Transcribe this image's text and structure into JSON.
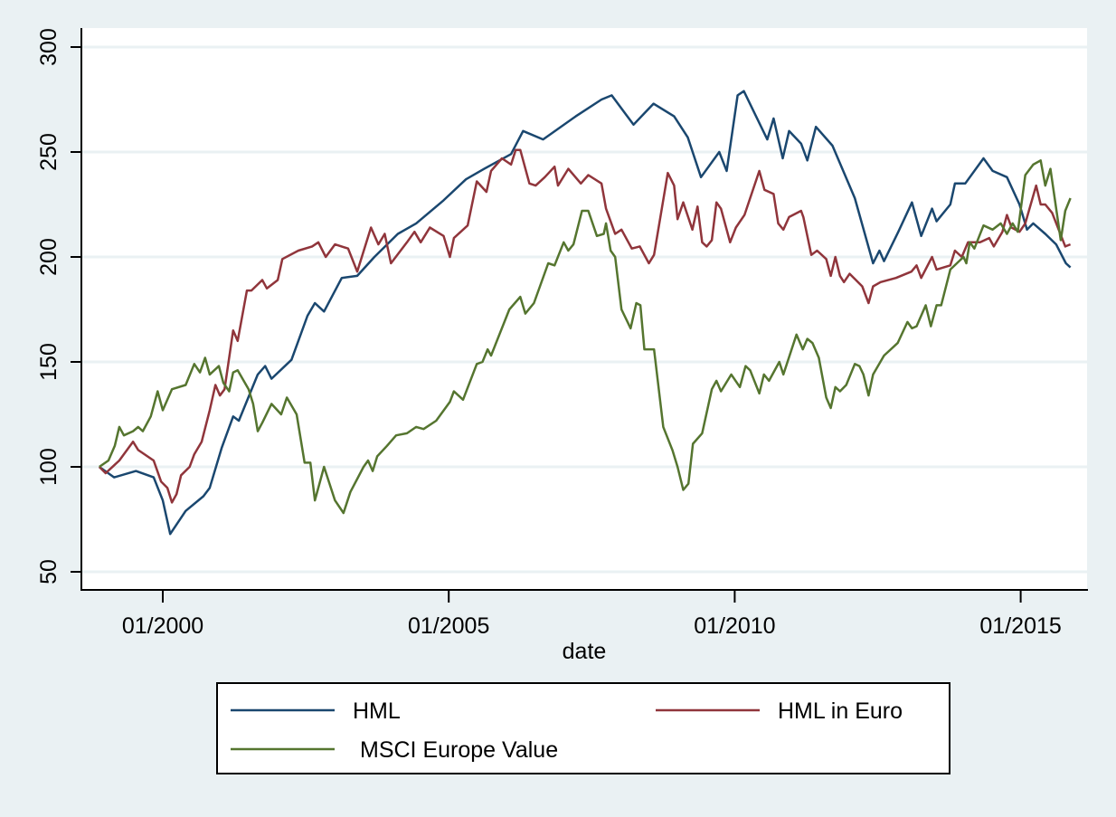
{
  "chart_data": {
    "type": "line",
    "title": "",
    "xlabel": "date",
    "ylabel": "",
    "ylim": [
      50,
      300
    ],
    "xlim": [
      1998.75,
      2016.1
    ],
    "grid": true,
    "legend_position": "bottom",
    "yticks": [
      50,
      100,
      150,
      200,
      250,
      300
    ],
    "xticks": [
      {
        "value": 2000,
        "label": "01/2000"
      },
      {
        "value": 2005,
        "label": "01/2005"
      },
      {
        "value": 2010,
        "label": "01/2010"
      },
      {
        "value": 2015,
        "label": "01/2015"
      }
    ],
    "series": [
      {
        "name": "HML",
        "color": "#1A476F",
        "x": [
          1998.89,
          1999.15,
          1999.53,
          1999.84,
          2000.0,
          2000.13,
          2000.4,
          2000.71,
          2000.82,
          2001.03,
          2001.23,
          2001.33,
          2001.66,
          2001.79,
          2001.9,
          2002.25,
          2002.53,
          2002.66,
          2002.82,
          2003.13,
          2003.4,
          2003.7,
          2004.11,
          2004.43,
          2004.91,
          2005.3,
          2005.62,
          2006.09,
          2006.3,
          2006.65,
          2007.22,
          2007.67,
          2007.85,
          2008.23,
          2008.58,
          2008.94,
          2009.18,
          2009.41,
          2009.73,
          2009.86,
          2010.05,
          2010.16,
          2010.57,
          2010.68,
          2010.84,
          2010.95,
          2011.16,
          2011.27,
          2011.42,
          2011.71,
          2012.1,
          2012.42,
          2012.53,
          2012.61,
          2012.86,
          2013.1,
          2013.26,
          2013.45,
          2013.53,
          2013.77,
          2013.85,
          2014.03,
          2014.35,
          2014.51,
          2014.76,
          2014.98,
          2015.11,
          2015.22,
          2015.43,
          2015.62,
          2015.79,
          2015.87
        ],
        "y": [
          100,
          95,
          98,
          95,
          84,
          68,
          79,
          86,
          90,
          109,
          124,
          122,
          144,
          148,
          142,
          151,
          172,
          178,
          174,
          190,
          191,
          200,
          211,
          216,
          227,
          237,
          242,
          249,
          260,
          256,
          267,
          275,
          277,
          263,
          273,
          267,
          257,
          238,
          250,
          241,
          277,
          279,
          256,
          266,
          247,
          260,
          254,
          246,
          262,
          253,
          228,
          197,
          203,
          198,
          212,
          226,
          210,
          223,
          217,
          225,
          235,
          235,
          247,
          241,
          238,
          225,
          213,
          216,
          211,
          206,
          197,
          195
        ]
      },
      {
        "name": "HML in Euro",
        "color": "#90353B",
        "x": [
          1998.89,
          1999.0,
          1999.24,
          1999.48,
          1999.57,
          1999.84,
          1999.97,
          2000.08,
          2000.16,
          2000.24,
          2000.32,
          2000.47,
          2000.55,
          2000.68,
          2000.82,
          2000.92,
          2001.0,
          2001.08,
          2001.23,
          2001.31,
          2001.47,
          2001.55,
          2001.74,
          2001.82,
          2002.01,
          2002.09,
          2002.37,
          2002.61,
          2002.72,
          2002.85,
          2003.01,
          2003.24,
          2003.4,
          2003.64,
          2003.77,
          2003.88,
          2003.99,
          2004.27,
          2004.4,
          2004.51,
          2004.67,
          2004.91,
          2005.02,
          2005.09,
          2005.33,
          2005.49,
          2005.66,
          2005.74,
          2005.93,
          2006.09,
          2006.17,
          2006.25,
          2006.41,
          2006.52,
          2006.68,
          2006.85,
          2006.91,
          2007.09,
          2007.31,
          2007.44,
          2007.67,
          2007.75,
          2007.91,
          2008.02,
          2008.2,
          2008.34,
          2008.5,
          2008.59,
          2008.83,
          2008.94,
          2009.0,
          2009.1,
          2009.26,
          2009.35,
          2009.43,
          2009.51,
          2009.6,
          2009.68,
          2009.76,
          2009.92,
          2010.02,
          2010.17,
          2010.43,
          2010.52,
          2010.68,
          2010.76,
          2010.85,
          2010.95,
          2011.16,
          2011.2,
          2011.34,
          2011.44,
          2011.6,
          2011.68,
          2011.76,
          2011.84,
          2011.91,
          2012.01,
          2012.23,
          2012.34,
          2012.42,
          2012.55,
          2012.82,
          2013.09,
          2013.18,
          2013.26,
          2013.45,
          2013.53,
          2013.77,
          2013.85,
          2013.97,
          2014.08,
          2014.29,
          2014.45,
          2014.53,
          2014.68,
          2014.76,
          2014.84,
          2014.98,
          2015.08,
          2015.27,
          2015.35,
          2015.43,
          2015.55,
          2015.78,
          2015.87
        ],
        "y": [
          100,
          97,
          103,
          112,
          108,
          103,
          93,
          90,
          83,
          87,
          96,
          100,
          106,
          112,
          127,
          139,
          134,
          137,
          165,
          160,
          184,
          184,
          189,
          185,
          189,
          199,
          203,
          205,
          207,
          200,
          206,
          204,
          193,
          214,
          206,
          211,
          197,
          207,
          212,
          207,
          214,
          210,
          200,
          209,
          215,
          236,
          231,
          241,
          247,
          244,
          251,
          251,
          235,
          234,
          238,
          243,
          234,
          242,
          235,
          239,
          235,
          223,
          211,
          213,
          204,
          205,
          197,
          201,
          240,
          234,
          218,
          226,
          213,
          224,
          207,
          205,
          208,
          226,
          223,
          207,
          214,
          220,
          241,
          232,
          230,
          216,
          213,
          219,
          222,
          219,
          201,
          203,
          199,
          191,
          200,
          191,
          188,
          192,
          186,
          178,
          186,
          188,
          190,
          193,
          196,
          190,
          200,
          194,
          196,
          203,
          200,
          207,
          207,
          209,
          205,
          212,
          220,
          214,
          212,
          216,
          234,
          225,
          225,
          221,
          205,
          206
        ]
      },
      {
        "name": "MSCI Europe Value",
        "color": "#55752F",
        "x": [
          1998.89,
          1999.05,
          1999.16,
          1999.24,
          1999.32,
          1999.48,
          1999.57,
          1999.65,
          1999.79,
          1999.91,
          2000.0,
          2000.16,
          2000.4,
          2000.55,
          2000.65,
          2000.74,
          2000.82,
          2000.98,
          2001.06,
          2001.16,
          2001.23,
          2001.31,
          2001.5,
          2001.58,
          2001.66,
          2001.74,
          2001.9,
          2002.07,
          2002.17,
          2002.34,
          2002.48,
          2002.58,
          2002.66,
          2002.82,
          2003.01,
          2003.16,
          2003.28,
          2003.51,
          2003.59,
          2003.67,
          2003.75,
          2003.92,
          2004.08,
          2004.27,
          2004.43,
          2004.56,
          2004.78,
          2005.02,
          2005.09,
          2005.25,
          2005.49,
          2005.59,
          2005.68,
          2005.74,
          2006.06,
          2006.25,
          2006.34,
          2006.49,
          2006.74,
          2006.85,
          2007.01,
          2007.09,
          2007.18,
          2007.33,
          2007.44,
          2007.59,
          2007.71,
          2007.75,
          2007.83,
          2007.91,
          2008.02,
          2008.18,
          2008.28,
          2008.35,
          2008.42,
          2008.59,
          2008.75,
          2008.91,
          2009.0,
          2009.1,
          2009.19,
          2009.27,
          2009.43,
          2009.6,
          2009.68,
          2009.76,
          2009.94,
          2010.09,
          2010.19,
          2010.27,
          2010.43,
          2010.51,
          2010.6,
          2010.78,
          2010.85,
          2011.08,
          2011.19,
          2011.27,
          2011.36,
          2011.47,
          2011.6,
          2011.68,
          2011.76,
          2011.84,
          2011.95,
          2012.1,
          2012.18,
          2012.25,
          2012.34,
          2012.42,
          2012.61,
          2012.85,
          2013.02,
          2013.1,
          2013.18,
          2013.34,
          2013.43,
          2013.53,
          2013.61,
          2013.77,
          2014.0,
          2014.05,
          2014.11,
          2014.19,
          2014.35,
          2014.51,
          2014.65,
          2014.76,
          2014.86,
          2014.95,
          2015.08,
          2015.22,
          2015.35,
          2015.43,
          2015.52,
          2015.7,
          2015.78,
          2015.87
        ],
        "y": [
          100,
          103,
          110,
          119,
          115,
          117,
          119,
          117,
          124,
          136,
          127,
          137,
          139,
          149,
          145,
          152,
          144,
          148,
          140,
          136,
          145,
          146,
          137,
          130,
          117,
          121,
          130,
          125,
          133,
          125,
          102,
          102,
          84,
          100,
          84,
          78,
          88,
          100,
          103,
          98,
          105,
          110,
          115,
          116,
          119,
          118,
          122,
          131,
          136,
          132,
          149,
          150,
          156,
          153,
          175,
          181,
          173,
          178,
          197,
          196,
          207,
          203,
          206,
          222,
          222,
          210,
          211,
          216,
          203,
          200,
          175,
          166,
          178,
          177,
          156,
          156,
          119,
          108,
          100,
          89,
          92,
          111,
          116,
          137,
          141,
          136,
          144,
          138,
          148,
          146,
          135,
          144,
          141,
          150,
          144,
          163,
          156,
          161,
          159,
          152,
          133,
          128,
          138,
          136,
          139,
          149,
          148,
          144,
          134,
          144,
          153,
          159,
          169,
          166,
          167,
          177,
          167,
          177,
          177,
          194,
          200,
          197,
          207,
          204,
          215,
          213,
          216,
          211,
          216,
          212,
          239,
          244,
          246,
          234,
          242,
          208,
          222,
          228
        ]
      }
    ]
  }
}
